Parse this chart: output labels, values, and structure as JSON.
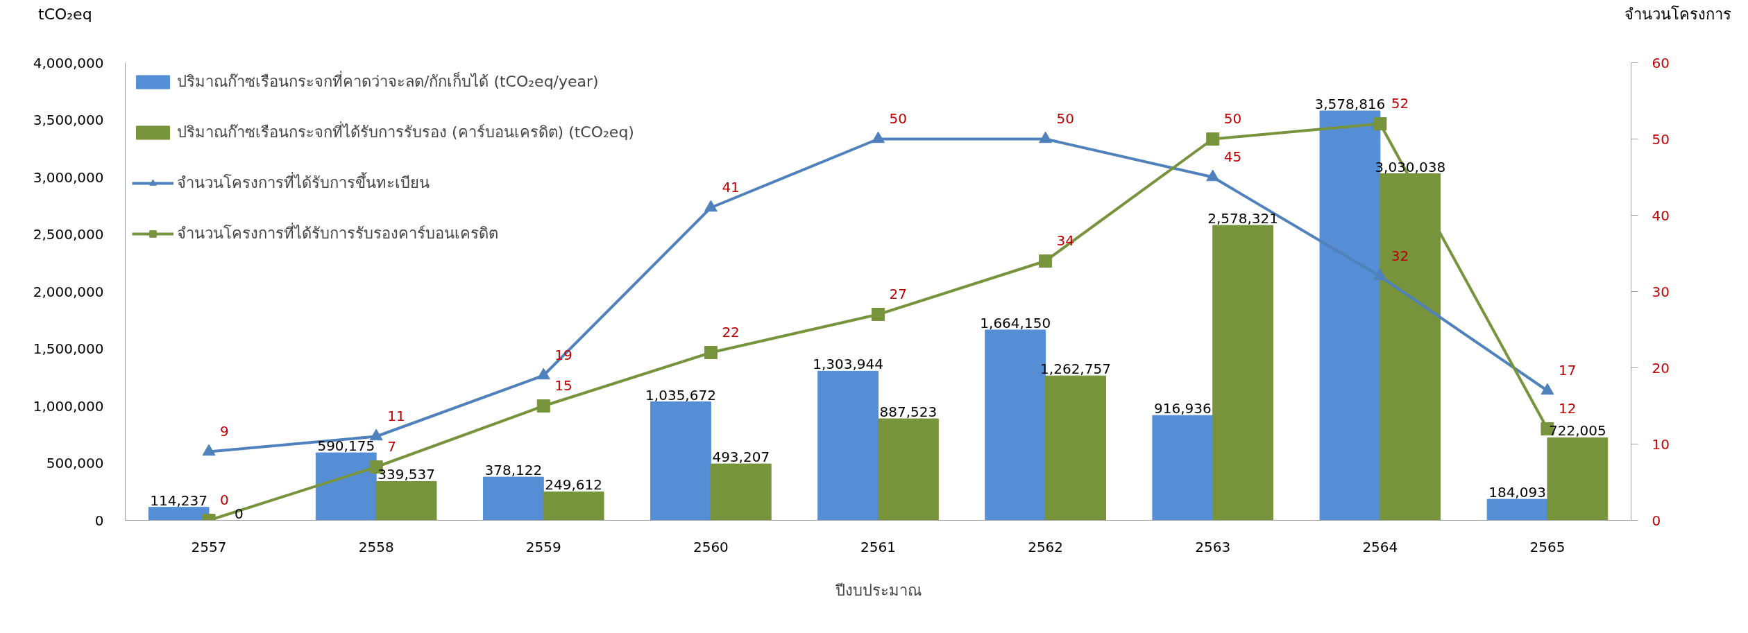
{
  "chart_data": {
    "type": "bar",
    "xlabel": "ปีงบประมาณ",
    "ylabel": "tCO₂eq",
    "y2label": "จำนวนโครงการ",
    "categories": [
      "2557",
      "2558",
      "2559",
      "2560",
      "2561",
      "2562",
      "2563",
      "2564",
      "2565"
    ],
    "series": [
      {
        "name": "ปริมาณก๊าซเรือนกระจกที่คาดว่าจะลด/กักเก็บได้ (tCO₂eq/year)",
        "color": "#558ed5",
        "values": [
          114237,
          590175,
          378122,
          1035672,
          1303944,
          1664150,
          916936,
          3578816,
          184093
        ],
        "value_labels": [
          "114,237",
          "590,175",
          "378,122",
          "1,035,672",
          "1,303,944",
          "1,664,150",
          "916,936",
          "3,578,816",
          "184,093"
        ]
      },
      {
        "name": "ปริมาณก๊าซเรือนกระจกที่ได้รับการรับรอง (คาร์บอนเครดิต) (tCO₂eq)",
        "color": "#77933c",
        "values": [
          0,
          339537,
          249612,
          493207,
          887523,
          1262757,
          2578321,
          3030038,
          722005
        ],
        "value_labels": [
          "0",
          "339,537",
          "249,612",
          "493,207",
          "887,523",
          "1,262,757",
          "2,578,321",
          "3,030,038",
          "722,005"
        ]
      },
      {
        "name": "จำนวนโครงการที่ได้รับการขึ้นทะเบียน",
        "type": "line",
        "axis": "y2",
        "marker": "triangle",
        "color": "#4f81bd",
        "values": [
          9,
          11,
          19,
          41,
          50,
          50,
          45,
          32,
          17
        ]
      },
      {
        "name": "จำนวนโครงการที่ได้รับการรับรองคาร์บอนเครดิต",
        "type": "line",
        "axis": "y2",
        "marker": "square",
        "color": "#77933c",
        "values": [
          0,
          7,
          15,
          22,
          27,
          34,
          50,
          52,
          12
        ]
      }
    ],
    "ylim": [
      0,
      4000000
    ],
    "yticks": [
      {
        "value": 0,
        "label": "0"
      },
      {
        "value": 500000,
        "label": "500,000"
      },
      {
        "value": 1000000,
        "label": "1,000,000"
      },
      {
        "value": 1500000,
        "label": "1,500,000"
      },
      {
        "value": 2000000,
        "label": "2,000,000"
      },
      {
        "value": 2500000,
        "label": "2,500,000"
      },
      {
        "value": 3000000,
        "label": "3,000,000"
      },
      {
        "value": 3500000,
        "label": "3,500,000"
      },
      {
        "value": 4000000,
        "label": "4,000,000"
      }
    ],
    "y2lim": [
      0,
      60
    ],
    "y2ticks": [
      0,
      10,
      20,
      30,
      40,
      50,
      60
    ],
    "data_labels": true,
    "grid": false,
    "legend": "top left",
    "line_style": "solid"
  }
}
